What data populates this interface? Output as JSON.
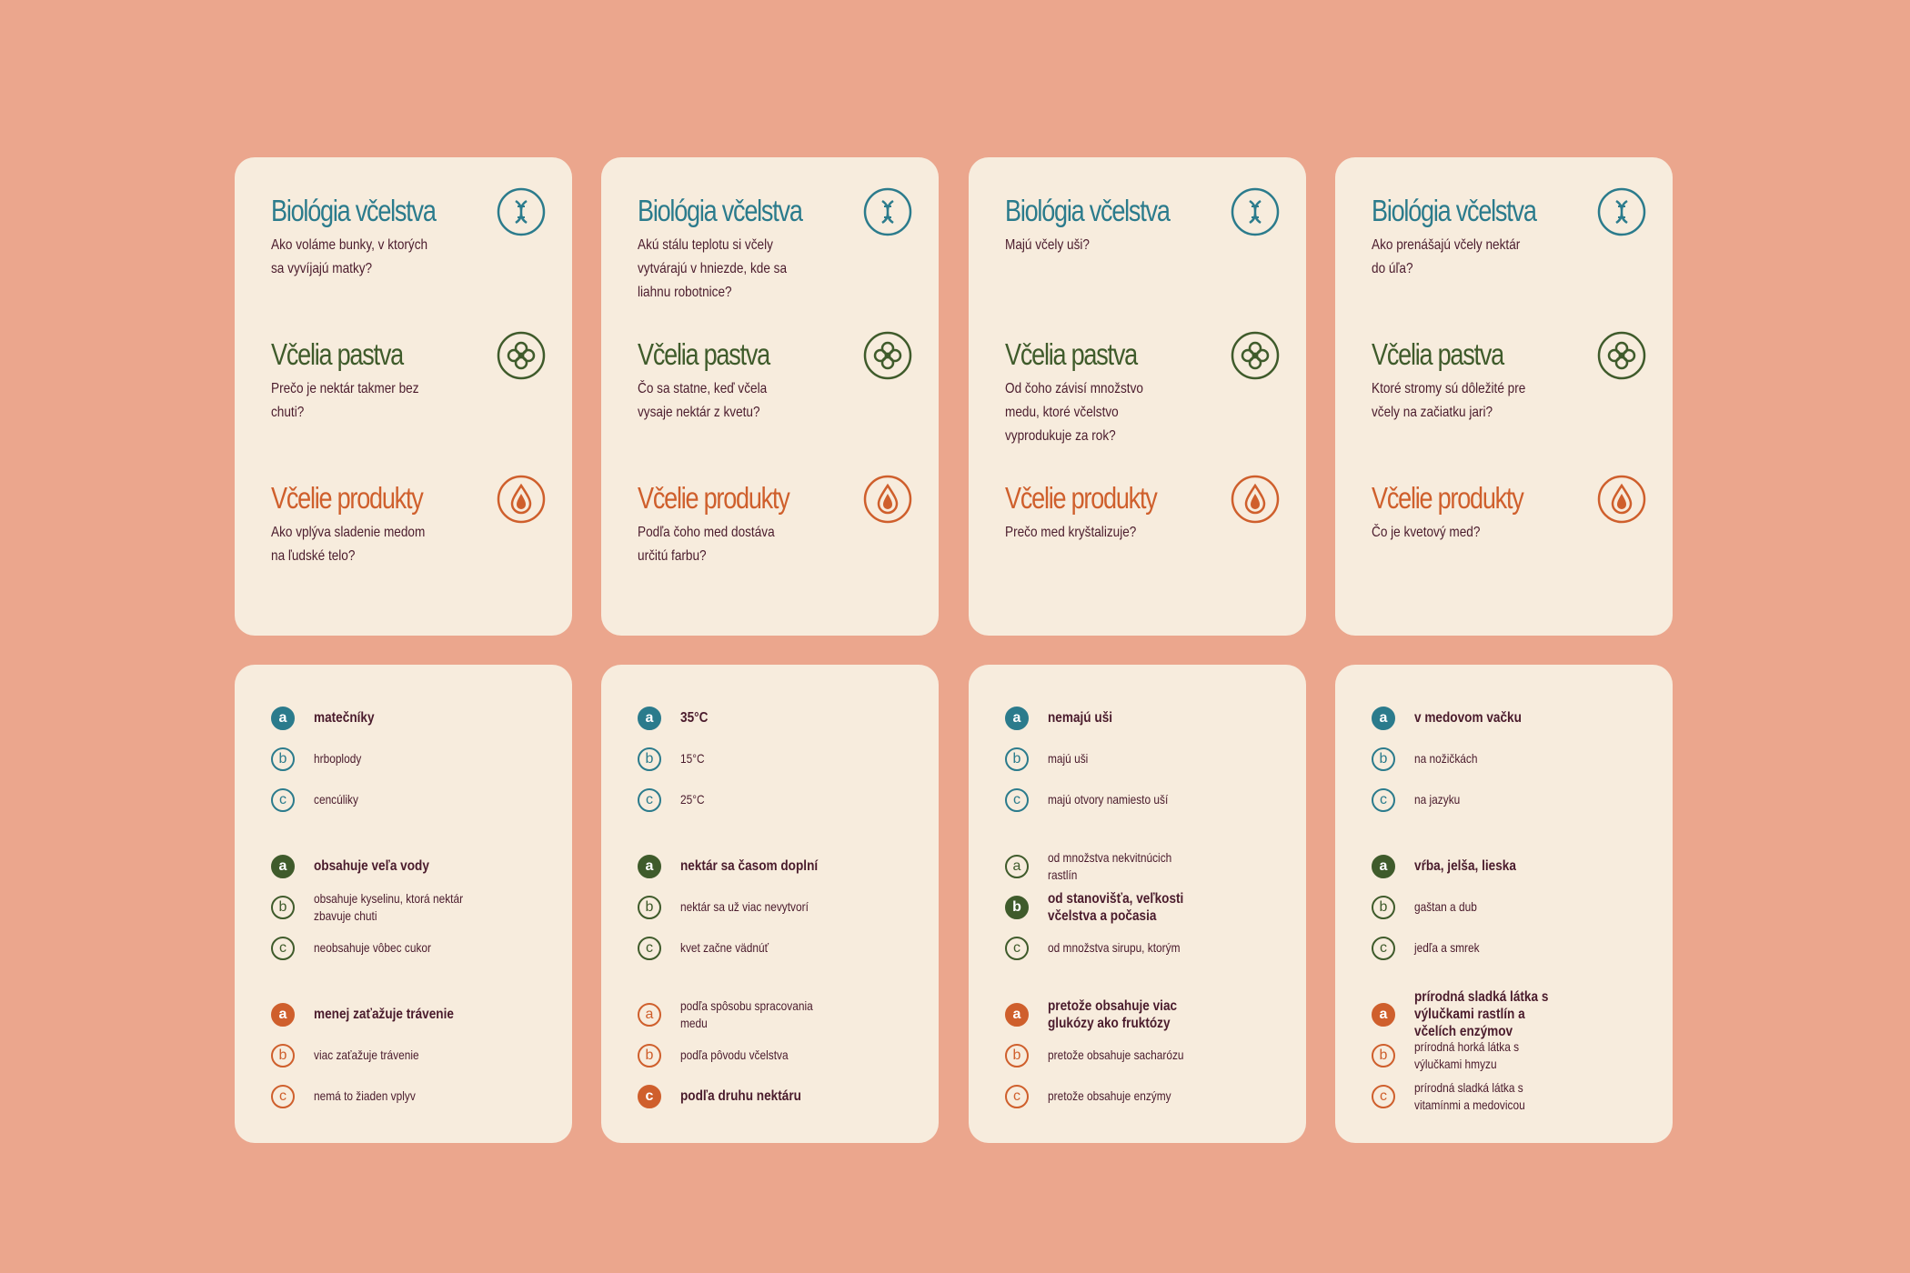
{
  "categories": [
    {
      "name": "Biológia včelstva",
      "color": "#2b7b8c"
    },
    {
      "name": "Včelia pastva",
      "color": "#3f5b2b"
    },
    {
      "name": "Včelie produkty",
      "color": "#cf5f2c"
    }
  ],
  "letters": [
    "a",
    "b",
    "c"
  ],
  "cards": [
    {
      "questions": [
        "Ako voláme bunky, v ktorých sa vyvíjajú matky?",
        "Prečo je nektár takmer bez chuti?",
        "Ako vplýva sladenie medom na ľudské telo?"
      ],
      "answers": [
        {
          "correct": 0,
          "options": [
            "matečníky",
            "hrboplody",
            "cencúliky"
          ]
        },
        {
          "correct": 0,
          "options": [
            "obsahuje veľa vody",
            "obsahuje kyselinu, ktorá nektár zbavuje chuti",
            "neobsahuje vôbec cukor"
          ]
        },
        {
          "correct": 0,
          "options": [
            "menej zaťažuje trávenie",
            "viac zaťažuje trávenie",
            "nemá to žiaden vplyv"
          ]
        }
      ]
    },
    {
      "questions": [
        "Akú stálu teplotu si včely vytvárajú v hniezde, kde sa liahnu robotnice?",
        "Čo sa statne, keď včela vysaje nektár z kvetu?",
        "Podľa čoho med dostáva určitú farbu?"
      ],
      "answers": [
        {
          "correct": 0,
          "options": [
            "35°C",
            "15°C",
            "25°C"
          ]
        },
        {
          "correct": 0,
          "options": [
            "nektár sa časom doplní",
            "nektár sa už viac nevytvorí",
            "kvet začne vädnúť"
          ]
        },
        {
          "correct": 2,
          "options": [
            "podľa spôsobu spracovania medu",
            "podľa pôvodu včelstva",
            "podľa druhu nektáru"
          ]
        }
      ]
    },
    {
      "questions": [
        "Majú včely uši?",
        "Od čoho závisí množstvo medu, ktoré včelstvo vyprodukuje za rok?",
        "Prečo med kryštalizuje?"
      ],
      "answers": [
        {
          "correct": 0,
          "options": [
            "nemajú uši",
            "majú uši",
            "majú otvory namiesto uší"
          ]
        },
        {
          "correct": 1,
          "options": [
            "od množstva nekvitnúcich rastlín",
            "od stanovišťa, veľkosti včelstva a počasia",
            "od množstva sirupu, ktorým"
          ]
        },
        {
          "correct": 0,
          "options": [
            "pretože obsahuje viac glukózy ako fruktózy",
            "pretože obsahuje sacharózu",
            "pretože obsahuje enzýmy"
          ]
        }
      ]
    },
    {
      "questions": [
        "Ako prenášajú včely nektár do úľa?",
        "Ktoré stromy sú dôležité pre včely na začiatku jari?",
        "Čo je kvetový med?"
      ],
      "answers": [
        {
          "correct": 0,
          "options": [
            "v medovom vačku",
            "na nožičkách",
            "na jazyku"
          ]
        },
        {
          "correct": 0,
          "options": [
            "vŕba, jelša, lieska",
            "gaštan a dub",
            "jedľa a smrek"
          ]
        },
        {
          "correct": 0,
          "options": [
            "prírodná sladká látka s výlučkami rastlín a včelích enzýmov",
            "prírodná horká látka s výlučkami hmyzu",
            "prírodná sladká látka s vitamínmi a medovicou"
          ]
        }
      ]
    }
  ]
}
